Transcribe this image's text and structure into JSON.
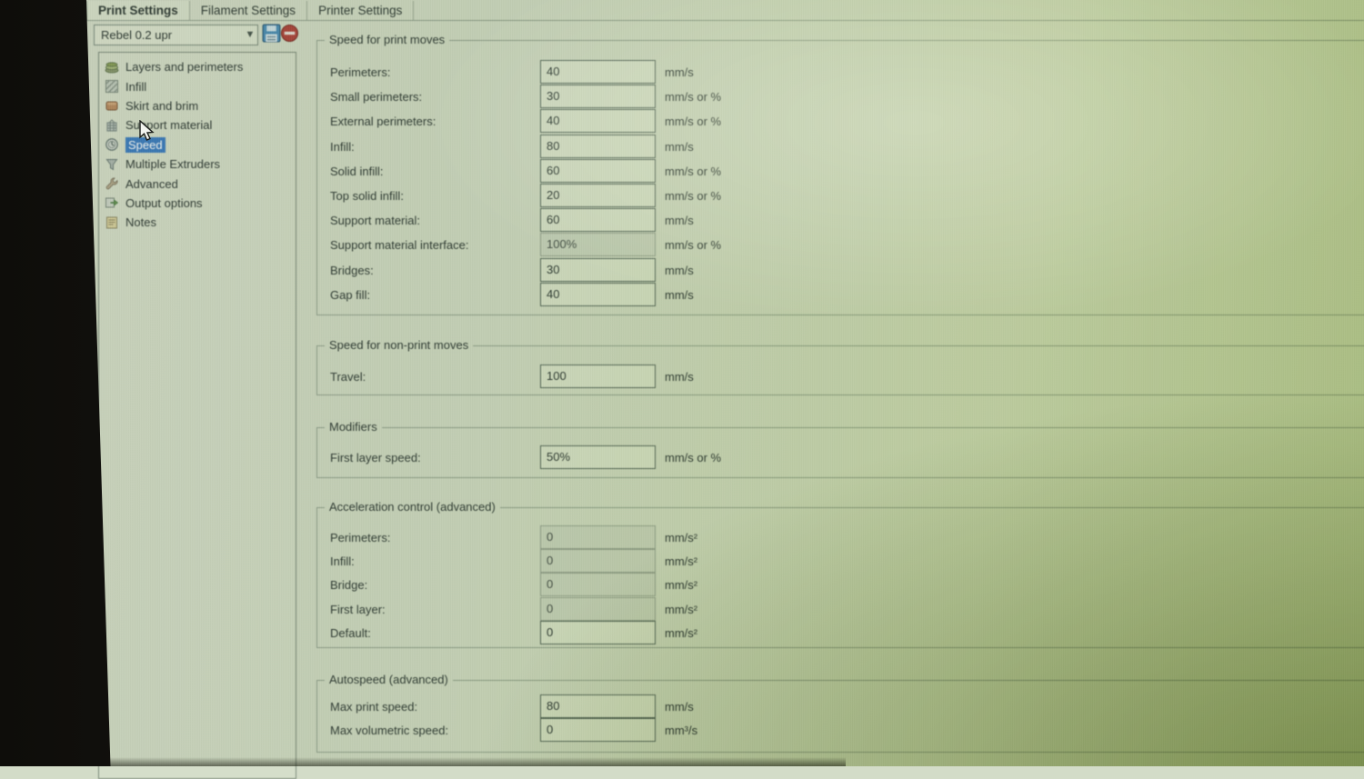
{
  "tabs": {
    "items": [
      {
        "label": "Print Settings",
        "active": true
      },
      {
        "label": "Filament Settings",
        "active": false
      },
      {
        "label": "Printer Settings",
        "active": false
      }
    ]
  },
  "preset": {
    "value": "Rebel 0.2 upr",
    "chevron_icon": "chevron-down-icon",
    "save_icon": "save-preset-icon",
    "delete_icon": "delete-preset-icon"
  },
  "sidebar": {
    "items": [
      {
        "label": "Layers and perimeters",
        "icon": "layers-icon",
        "selected": false
      },
      {
        "label": "Infill",
        "icon": "infill-icon",
        "selected": false
      },
      {
        "label": "Skirt and brim",
        "icon": "skirt-icon",
        "selected": false
      },
      {
        "label": "Support material",
        "icon": "support-icon",
        "selected": false
      },
      {
        "label": "Speed",
        "icon": "speed-icon",
        "selected": true
      },
      {
        "label": "Multiple Extruders",
        "icon": "extruders-icon",
        "selected": false
      },
      {
        "label": "Advanced",
        "icon": "advanced-icon",
        "selected": false
      },
      {
        "label": "Output options",
        "icon": "output-icon",
        "selected": false
      },
      {
        "label": "Notes",
        "icon": "notes-icon",
        "selected": false
      }
    ]
  },
  "sections": [
    {
      "title": "Speed for print moves",
      "rows": [
        {
          "label": "Perimeters:",
          "value": "40",
          "unit": "mm/s",
          "disabled": false
        },
        {
          "label": "Small perimeters:",
          "value": "30",
          "unit": "mm/s or %",
          "disabled": false
        },
        {
          "label": "External perimeters:",
          "value": "40",
          "unit": "mm/s or %",
          "disabled": false
        },
        {
          "label": "Infill:",
          "value": "80",
          "unit": "mm/s",
          "disabled": false
        },
        {
          "label": "Solid infill:",
          "value": "60",
          "unit": "mm/s or %",
          "disabled": false
        },
        {
          "label": "Top solid infill:",
          "value": "20",
          "unit": "mm/s or %",
          "disabled": false
        },
        {
          "label": "Support material:",
          "value": "60",
          "unit": "mm/s",
          "disabled": false
        },
        {
          "label": "Support material interface:",
          "value": "100%",
          "unit": "mm/s or %",
          "disabled": true
        },
        {
          "label": "Bridges:",
          "value": "30",
          "unit": "mm/s",
          "disabled": false
        },
        {
          "label": "Gap fill:",
          "value": "40",
          "unit": "mm/s",
          "disabled": false
        }
      ]
    },
    {
      "title": "Speed for non-print moves",
      "rows": [
        {
          "label": "Travel:",
          "value": "100",
          "unit": "mm/s",
          "disabled": false
        }
      ]
    },
    {
      "title": "Modifiers",
      "rows": [
        {
          "label": "First layer speed:",
          "value": "50%",
          "unit": "mm/s or %",
          "disabled": false
        }
      ]
    },
    {
      "title": "Acceleration control (advanced)",
      "rows": [
        {
          "label": "Perimeters:",
          "value": "0",
          "unit": "mm/s²",
          "disabled": true
        },
        {
          "label": "Infill:",
          "value": "0",
          "unit": "mm/s²",
          "disabled": true
        },
        {
          "label": "Bridge:",
          "value": "0",
          "unit": "mm/s²",
          "disabled": true
        },
        {
          "label": "First layer:",
          "value": "0",
          "unit": "mm/s²",
          "disabled": true
        },
        {
          "label": "Default:",
          "value": "0",
          "unit": "mm/s²",
          "disabled": false
        }
      ]
    },
    {
      "title": "Autospeed (advanced)",
      "rows": [
        {
          "label": "Max print speed:",
          "value": "80",
          "unit": "mm/s",
          "disabled": false
        },
        {
          "label": "Max volumetric speed:",
          "value": "0",
          "unit": "mm³/s",
          "disabled": false
        }
      ]
    }
  ],
  "cursor": {
    "icon": "mouse-arrow-icon"
  },
  "colors": {
    "selection_accent": "#3e7fc1",
    "screen_tint_green": "#cdd9b4",
    "bezel_dark": "#1d1a15",
    "save_icon_blue": "#4e8fb8",
    "delete_icon_red": "#b0483e"
  }
}
